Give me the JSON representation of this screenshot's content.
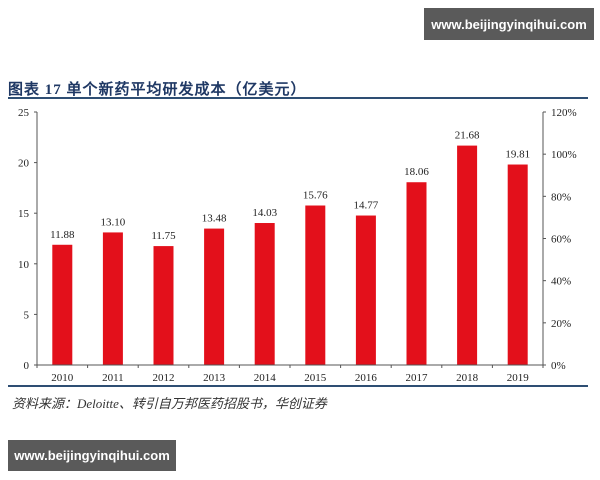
{
  "watermarks": {
    "top": "www.beijingyinqihui.com",
    "bottom": "www.beijingyinqihui.com"
  },
  "header": {
    "title": "图表 17   单个新药平均研发成本（亿美元）"
  },
  "footer": {
    "source": "资料来源：Deloitte、转引自万邦医药招股书，华创证券"
  },
  "colors": {
    "bar": "#e3101b",
    "rule": "#2e4e73",
    "axis": "#555555"
  },
  "chart_data": {
    "type": "bar",
    "title": "单个新药平均研发成本（亿美元）",
    "xlabel": "",
    "ylabel": "",
    "categories": [
      "2010",
      "2011",
      "2012",
      "2013",
      "2014",
      "2015",
      "2016",
      "2017",
      "2018",
      "2019"
    ],
    "values": [
      11.88,
      13.1,
      11.75,
      13.48,
      14.03,
      15.76,
      14.77,
      18.06,
      21.68,
      19.81
    ],
    "value_labels": [
      "11.88",
      "13.10",
      "11.75",
      "13.48",
      "14.03",
      "15.76",
      "14.77",
      "18.06",
      "21.68",
      "19.81"
    ],
    "ylim": [
      0,
      25
    ],
    "yticks": [
      "0",
      "5",
      "10",
      "15",
      "20",
      "25"
    ],
    "y2lim": [
      0,
      1.2
    ],
    "y2ticks": [
      "0%",
      "20%",
      "40%",
      "60%",
      "80%",
      "100%",
      "120%"
    ],
    "grid": false,
    "legend": null
  }
}
